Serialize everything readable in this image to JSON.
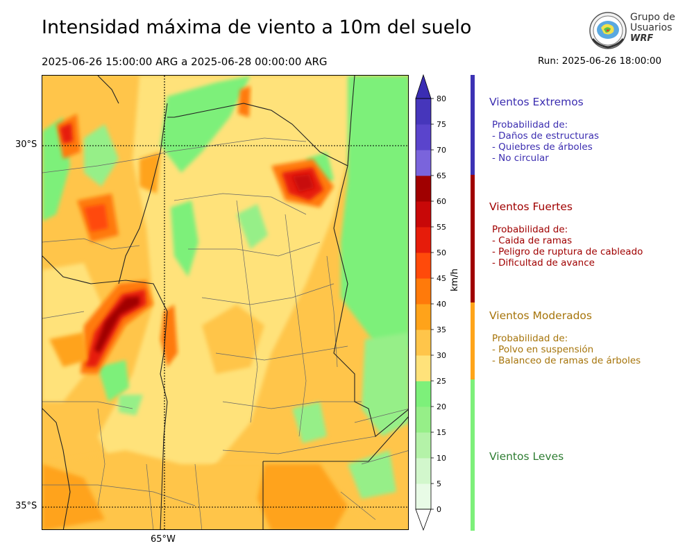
{
  "header": {
    "title": "Intensidad máxima de viento a 10m del suelo",
    "period": "2025-06-26 15:00:00 ARG  a  2025-06-28 00:00:00 ARG",
    "run": "Run: 2025-06-26 18:00:00"
  },
  "logo": {
    "line1": "Grupo de",
    "line2": "Usuarios",
    "line3": "WRF"
  },
  "map": {
    "lat_labels": [
      "30°S",
      "35°S"
    ],
    "lon_labels": [
      "65°W"
    ]
  },
  "colorbar": {
    "unit": "km/h",
    "ticks": [
      "0",
      "5",
      "10",
      "15",
      "20",
      "25",
      "30",
      "35",
      "40",
      "45",
      "50",
      "55",
      "60",
      "65",
      "70",
      "75",
      "80"
    ],
    "colors": [
      "#e8fbe6",
      "#d2f7cc",
      "#b4f2a8",
      "#96ef88",
      "#7df07a",
      "#ffe27a",
      "#ffc54a",
      "#ffa31a",
      "#ff7a0a",
      "#ff4a0a",
      "#e61c0a",
      "#c80808",
      "#a00000",
      "#7a64dc",
      "#5a44cc",
      "#4636bb"
    ]
  },
  "categories": [
    {
      "title": "Vientos Extremos",
      "color": "#3b2db0",
      "bar_color": "#3c32b4",
      "lines": [
        "Probabilidad de:",
        "- Daños de estructuras",
        "- Quiebres de árboles",
        "- No circular"
      ]
    },
    {
      "title": "Vientos Fuertes",
      "color": "#a00000",
      "bar_color": "#a00000",
      "lines": [
        "Probabilidad de:",
        "- Caida de ramas",
        "- Peligro de ruptura de cableado",
        "- Dificultad de avance"
      ]
    },
    {
      "title": "Vientos Moderados",
      "color": "#a6740a",
      "bar_color": "#ffa51a",
      "lines": [
        "Probabilidad de:",
        "- Polvo en suspensión",
        "- Balanceo de ramas de árboles"
      ]
    },
    {
      "title": "Vientos Leves",
      "color": "#2e7d32",
      "bar_color": "#7df07a",
      "lines": []
    }
  ]
}
